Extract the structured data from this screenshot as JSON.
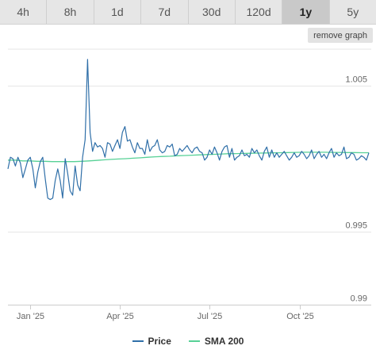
{
  "ranges": {
    "tabs": [
      {
        "label": "4h",
        "active": false
      },
      {
        "label": "8h",
        "active": false
      },
      {
        "label": "1d",
        "active": false
      },
      {
        "label": "7d",
        "active": false
      },
      {
        "label": "30d",
        "active": false
      },
      {
        "label": "120d",
        "active": false
      },
      {
        "label": "1y",
        "active": true
      },
      {
        "label": "5y",
        "active": false
      }
    ]
  },
  "remove_graph_label": "remove graph",
  "chart_data": {
    "type": "line",
    "x_tick_labels": [
      "Jan '25",
      "Apr '25",
      "Jul '25",
      "Oct '25"
    ],
    "y_tick_labels": [
      "1.005",
      "0.995",
      "0.99"
    ],
    "y_tick_values": [
      1.005,
      0.995,
      0.99
    ],
    "ylim": [
      0.99,
      1.0075
    ],
    "grid": true,
    "legend_position": "bottom-center",
    "series": [
      {
        "name": "Price",
        "color": "#2f6fa8",
        "values": [
          0.9993,
          1.0001,
          1.0,
          0.9995,
          1.0001,
          0.9997,
          0.9987,
          0.9993,
          0.9999,
          1.0001,
          0.9993,
          0.998,
          0.9991,
          0.9998,
          1.0001,
          0.9986,
          0.9973,
          0.9972,
          0.9973,
          0.9985,
          0.9993,
          0.9985,
          0.9973,
          1.0,
          0.999,
          0.9978,
          0.9975,
          0.9995,
          0.9982,
          0.9978,
          1.0001,
          1.0013,
          1.0068,
          1.0018,
          1.0005,
          1.0011,
          1.0008,
          1.0009,
          1.0007,
          1.0001,
          1.0011,
          1.001,
          1.0005,
          1.0009,
          1.0013,
          1.0007,
          1.0018,
          1.0022,
          1.0012,
          1.0013,
          1.0008,
          1.0004,
          1.0011,
          1.0007,
          1.0007,
          1.0003,
          1.0013,
          1.0005,
          1.0008,
          1.0009,
          1.0013,
          1.0006,
          1.0004,
          1.0005,
          1.0009,
          1.0008,
          1.001,
          1.0002,
          1.0003,
          1.0007,
          1.0005,
          1.0007,
          1.0009,
          1.0006,
          1.0004,
          1.0007,
          1.0008,
          1.0005,
          1.0004,
          0.9999,
          1.0001,
          1.0006,
          1.0003,
          1.0008,
          1.0004,
          0.9999,
          1.0005,
          1.0008,
          1.0009,
          1.0001,
          1.0007,
          0.9999,
          1.0001,
          1.0002,
          1.0006,
          1.0002,
          1.0003,
          1.0001,
          1.0007,
          1.0004,
          1.0006,
          1.0002,
          0.9999,
          1.0005,
          1.0008,
          1.0001,
          1.0006,
          1.0001,
          1.0004,
          1.0001,
          1.0003,
          1.0005,
          1.0002,
          0.9999,
          1.0001,
          1.0004,
          1.0001,
          1.0002,
          1.0005,
          1.0003,
          1.0,
          1.0002,
          1.0006,
          1.0,
          1.0003,
          1.0005,
          1.0001,
          1.0003,
          1.0,
          1.0004,
          1.0007,
          1.0001,
          1.0004,
          1.0002,
          1.0003,
          1.0008,
          1.0,
          1.0001,
          1.0004,
          1.0003,
          0.9999,
          1.0,
          1.0002,
          1.0001,
          0.9999,
          1.0004
        ]
      },
      {
        "name": "SMA 200",
        "color": "#57d196",
        "values": [
          0.9999,
          0.9999,
          0.99985,
          0.99985,
          0.99982,
          0.99982,
          0.9998,
          0.9998,
          0.9998,
          0.9998,
          0.99982,
          0.99985,
          0.99988,
          0.99992,
          0.99995,
          0.99998,
          1.0,
          1.00003,
          1.00006,
          1.0001,
          1.00013,
          1.00015,
          1.00017,
          1.0002,
          1.00022,
          1.00024,
          1.00026,
          1.00028,
          1.0003,
          1.00032,
          1.00034,
          1.00035,
          1.00036,
          1.00037,
          1.00038,
          1.00039,
          1.0004,
          1.00041,
          1.00042,
          1.00043,
          1.00044,
          1.00044,
          1.00044,
          1.00044,
          1.00043,
          1.00043,
          1.00042,
          1.00042,
          1.00041,
          1.00041
        ]
      }
    ]
  }
}
